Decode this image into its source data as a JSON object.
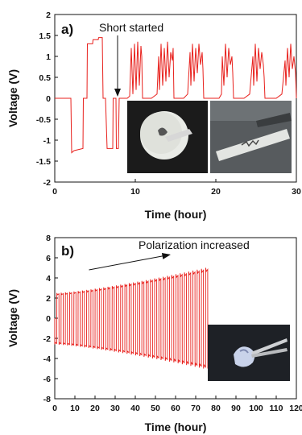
{
  "chart_data": [
    {
      "type": "line",
      "panel_label": "a)",
      "xlabel": "Time (hour)",
      "ylabel": "Voltage (V)",
      "xlim": [
        0,
        30
      ],
      "ylim": [
        -2,
        2
      ],
      "xticks": [
        0,
        10,
        20,
        30
      ],
      "yticks": [
        -2,
        -1.5,
        -1,
        -0.5,
        0,
        0.5,
        1,
        1.5,
        2
      ],
      "annotation": "Short started",
      "annotation_arrow_to": [
        7.9,
        0
      ],
      "grid": false,
      "series": [
        {
          "color": "#e8211d",
          "x": [
            0,
            2.0,
            2.1,
            2.4,
            3.5,
            3.55,
            4.0,
            4.05,
            4.7,
            4.75,
            5.4,
            5.45,
            5.9,
            6.0,
            6.3,
            6.5,
            7.2,
            7.25,
            7.6,
            7.65,
            7.9,
            8.0,
            8.5,
            9.0,
            9.3,
            9.5,
            9.7,
            9.9,
            10.1,
            10.3,
            10.5,
            10.7,
            10.8,
            10.9,
            11.5,
            12.0,
            12.7,
            12.9,
            13.0,
            13.2,
            13.4,
            13.6,
            13.8,
            14.0,
            14.2,
            14.4,
            14.6,
            14.7,
            14.8,
            15.5,
            16.0,
            16.5,
            16.8,
            16.9,
            17.1,
            17.3,
            17.5,
            17.7,
            17.9,
            18.1,
            18.3,
            18.4,
            18.5,
            19.0,
            19.7,
            20.4,
            20.7,
            20.8,
            21.0,
            21.2,
            21.4,
            21.6,
            21.8,
            22.0,
            22.1,
            22.2,
            23.0,
            23.5,
            24.2,
            24.6,
            24.7,
            24.9,
            25.1,
            25.3,
            25.5,
            25.7,
            25.9,
            26.0,
            26.1,
            27.0,
            27.5,
            28.2,
            28.6,
            28.7,
            28.9,
            29.1,
            29.3,
            29.5,
            29.7,
            29.9,
            30.0
          ],
          "y": [
            0,
            0,
            -1.3,
            -1.25,
            -1.2,
            0,
            0,
            1.3,
            1.3,
            1.4,
            1.4,
            1.45,
            1.45,
            0,
            0,
            -1.2,
            -1.2,
            0,
            0,
            -1.2,
            -1.2,
            0,
            0,
            0,
            0.05,
            1.2,
            0.1,
            1.3,
            0.2,
            1.35,
            0.3,
            1.25,
            1.0,
            0,
            0,
            0,
            0.1,
            1.0,
            0.2,
            1.3,
            0.3,
            1.2,
            0.4,
            1.35,
            0.5,
            1.1,
            0.9,
            1.2,
            0,
            0,
            0,
            0.1,
            1.1,
            0.3,
            1.3,
            0.4,
            1.2,
            0.6,
            1.3,
            0.8,
            1.1,
            0.7,
            0,
            0,
            0,
            0,
            0.1,
            1.0,
            0.3,
            1.3,
            0.5,
            1.2,
            0.8,
            1.0,
            0.6,
            0,
            0,
            0,
            0.1,
            1.0,
            0.3,
            1.3,
            0.4,
            1.2,
            0.7,
            1.1,
            0.8,
            0.5,
            0,
            0,
            0,
            0.1,
            0.9,
            0.3,
            1.2,
            0.5,
            1.3,
            0.7,
            1.0,
            0.6,
            0
          ]
        }
      ]
    },
    {
      "type": "line",
      "panel_label": "b)",
      "xlabel": "Time (hour)",
      "ylabel": "Voltage (V)",
      "xlim": [
        0,
        120
      ],
      "ylim": [
        -8,
        8
      ],
      "xticks": [
        0,
        10,
        20,
        30,
        40,
        50,
        60,
        70,
        80,
        90,
        100,
        110,
        120
      ],
      "yticks": [
        -8,
        -6,
        -4,
        -2,
        0,
        2,
        4,
        6,
        8
      ],
      "annotation": "Polarization increased",
      "annotation_arrow_from": [
        17,
        4.8
      ],
      "annotation_arrow_to": [
        57,
        6.3
      ],
      "grid": false,
      "series": [
        {
          "color": "#e8211d",
          "cycles": {
            "start": 0,
            "end": 76,
            "count": 36,
            "positive_start": 2.5,
            "positive_end": 5.0,
            "negative_start": -2.6,
            "negative_end": -5.0
          }
        }
      ]
    }
  ]
}
